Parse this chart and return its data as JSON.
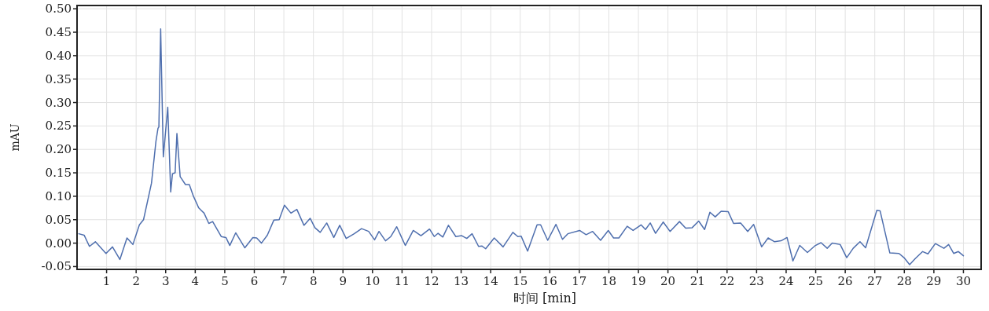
{
  "chart_data": {
    "type": "line",
    "xlabel": "时间 [min]",
    "ylabel": "mAU",
    "xlim": [
      0,
      30.6
    ],
    "ylim": [
      -0.056,
      0.507
    ],
    "xticks": [
      1,
      2,
      3,
      4,
      5,
      6,
      7,
      8,
      9,
      10,
      11,
      12,
      13,
      14,
      15,
      16,
      17,
      18,
      19,
      20,
      21,
      22,
      23,
      24,
      25,
      26,
      27,
      28,
      29,
      30
    ],
    "yticks": [
      {
        "value": -0.05,
        "label": "-0.05"
      },
      {
        "value": 0,
        "label": "0.00"
      },
      {
        "value": 0.05,
        "label": "0.05"
      },
      {
        "value": 0.1,
        "label": "0.10"
      },
      {
        "value": 0.15,
        "label": "0.15"
      },
      {
        "value": 0.2,
        "label": "0.20"
      },
      {
        "value": 0.25,
        "label": "0.25"
      },
      {
        "value": 0.3,
        "label": "0.30"
      },
      {
        "value": 0.35,
        "label": "0.35"
      },
      {
        "value": 0.4,
        "label": "0.40"
      },
      {
        "value": 0.45,
        "label": "0.45"
      },
      {
        "value": 0.5,
        "label": "0.50"
      }
    ],
    "grid": true,
    "x": [
      0.06,
      0.24,
      0.42,
      0.62,
      0.98,
      1.2,
      1.45,
      1.69,
      1.89,
      2.11,
      2.25,
      2.52,
      2.67,
      2.74,
      2.77,
      2.83,
      2.92,
      3.07,
      3.17,
      3.23,
      3.32,
      3.38,
      3.49,
      3.67,
      3.8,
      3.94,
      4.12,
      4.3,
      4.46,
      4.59,
      4.88,
      5.04,
      5.17,
      5.37,
      5.68,
      5.95,
      6.08,
      6.24,
      6.44,
      6.66,
      6.84,
      7.02,
      7.24,
      7.44,
      7.68,
      7.89,
      8.05,
      8.23,
      8.45,
      8.69,
      8.89,
      9.11,
      9.38,
      9.63,
      9.87,
      10.07,
      10.22,
      10.44,
      10.62,
      10.82,
      11.11,
      11.38,
      11.64,
      11.93,
      12.09,
      12.22,
      12.38,
      12.57,
      12.82,
      13.02,
      13.19,
      13.37,
      13.59,
      13.7,
      13.83,
      14.12,
      14.42,
      14.75,
      14.92,
      15.03,
      15.25,
      15.57,
      15.69,
      15.93,
      16.21,
      16.43,
      16.61,
      17.01,
      17.23,
      17.45,
      17.72,
      17.98,
      18.16,
      18.34,
      18.62,
      18.82,
      19.09,
      19.24,
      19.4,
      19.58,
      19.84,
      20.07,
      20.39,
      20.6,
      20.82,
      21.04,
      21.24,
      21.42,
      21.6,
      21.8,
      22.04,
      22.22,
      22.46,
      22.7,
      22.9,
      23.17,
      23.39,
      23.61,
      23.83,
      24.03,
      24.23,
      24.46,
      24.72,
      24.99,
      25.18,
      25.39,
      25.56,
      25.83,
      26.05,
      26.27,
      26.5,
      26.69,
      27.07,
      27.18,
      27.51,
      27.82,
      27.99,
      28.18,
      28.37,
      28.62,
      28.8,
      29.05,
      29.34,
      29.5,
      29.67,
      29.83,
      30.0
    ],
    "series": [
      {
        "color": "#4f6fae",
        "values": [
          0.02,
          0.017,
          -0.007,
          0.003,
          -0.022,
          -0.008,
          -0.035,
          0.011,
          -0.003,
          0.039,
          0.05,
          0.128,
          0.217,
          0.245,
          0.248,
          0.457,
          0.184,
          0.29,
          0.109,
          0.148,
          0.15,
          0.234,
          0.142,
          0.125,
          0.125,
          0.1,
          0.075,
          0.064,
          0.042,
          0.046,
          0.014,
          0.012,
          -0.005,
          0.022,
          -0.01,
          0.012,
          0.011,
          0.0,
          0.017,
          0.049,
          0.05,
          0.081,
          0.064,
          0.072,
          0.038,
          0.053,
          0.033,
          0.023,
          0.043,
          0.012,
          0.038,
          0.01,
          0.02,
          0.031,
          0.025,
          0.007,
          0.025,
          0.005,
          0.014,
          0.035,
          -0.005,
          0.027,
          0.016,
          0.03,
          0.014,
          0.021,
          0.013,
          0.038,
          0.014,
          0.016,
          0.01,
          0.02,
          -0.007,
          -0.006,
          -0.012,
          0.011,
          -0.008,
          0.023,
          0.014,
          0.015,
          -0.017,
          0.039,
          0.039,
          0.006,
          0.04,
          0.008,
          0.02,
          0.027,
          0.018,
          0.025,
          0.006,
          0.027,
          0.011,
          0.011,
          0.036,
          0.027,
          0.039,
          0.029,
          0.043,
          0.021,
          0.045,
          0.025,
          0.046,
          0.032,
          0.033,
          0.047,
          0.029,
          0.066,
          0.056,
          0.068,
          0.067,
          0.042,
          0.043,
          0.025,
          0.04,
          -0.008,
          0.011,
          0.003,
          0.005,
          0.012,
          -0.038,
          -0.005,
          -0.02,
          -0.005,
          0.001,
          -0.011,
          0.0,
          -0.003,
          -0.031,
          -0.011,
          0.003,
          -0.01,
          0.07,
          0.069,
          -0.021,
          -0.022,
          -0.031,
          -0.046,
          -0.033,
          -0.018,
          -0.023,
          -0.001,
          -0.011,
          -0.003,
          -0.022,
          -0.018,
          -0.027
        ]
      }
    ]
  }
}
